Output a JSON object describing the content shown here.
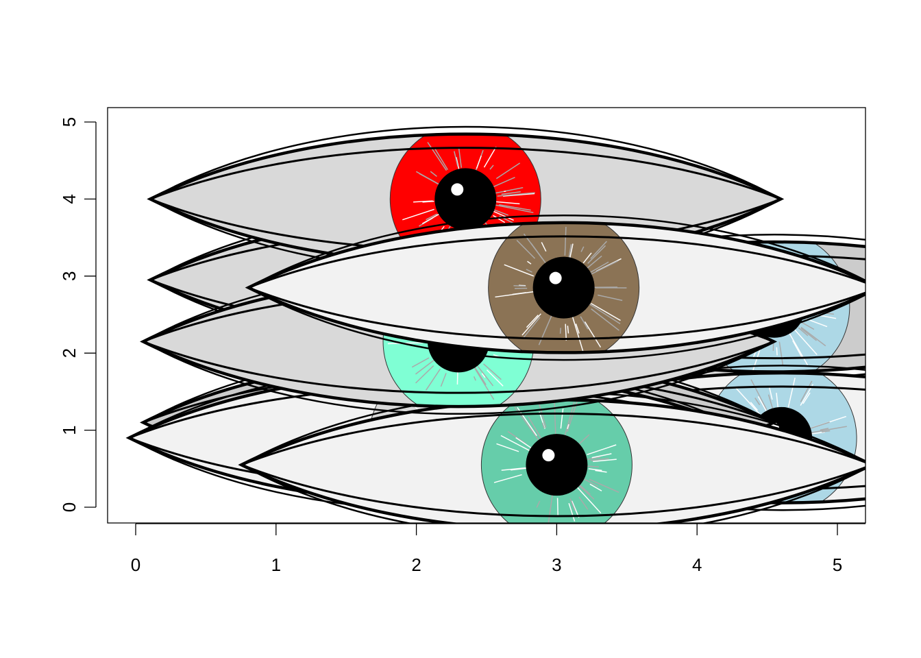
{
  "chart_data": {
    "type": "scatter",
    "title": "",
    "xlabel": "",
    "ylabel": "",
    "xlim": [
      -0.05,
      5.2
    ],
    "ylim": [
      -0.2,
      5.2
    ],
    "x_ticks": [
      "0",
      "1",
      "2",
      "3",
      "4",
      "5"
    ],
    "y_ticks": [
      "0",
      "1",
      "2",
      "3",
      "4",
      "5"
    ],
    "x_tick_values": [
      0,
      1,
      2,
      3,
      4,
      5
    ],
    "y_tick_values": [
      0,
      1,
      2,
      3,
      4,
      5
    ],
    "grid": false,
    "legend": "none",
    "marker": "eye glyphs",
    "sclera_colors": [
      "#d9d9d9",
      "#f2f2f2",
      "#cccccc"
    ],
    "pupil_color": "#000000",
    "eyes": [
      {
        "x": 2.35,
        "y": 2.95,
        "iris_color": "#add8e6",
        "sclera": "#d9d9d9"
      },
      {
        "x": 2.7,
        "y": 2.2,
        "iris_color": "#add8e6",
        "sclera": "#d9d9d9"
      },
      {
        "x": 4.55,
        "y": 2.6,
        "iris_color": "#add8e6",
        "sclera": "#cccccc"
      },
      {
        "x": 4.6,
        "y": 0.9,
        "iris_color": "#add8e6",
        "sclera": "#f2f2f2"
      },
      {
        "x": 2.3,
        "y": 1.1,
        "iris_color": "#d9d9d9",
        "sclera": "#cccccc"
      },
      {
        "x": 2.2,
        "y": 0.9,
        "iris_color": "#d9d9d9",
        "sclera": "#f2f2f2"
      },
      {
        "x": 3.0,
        "y": 0.55,
        "iris_color": "#66cdaa",
        "sclera": "#f2f2f2"
      },
      {
        "x": 2.35,
        "y": 4.0,
        "iris_color": "#ff0000",
        "sclera": "#d9d9d9"
      },
      {
        "x": 2.3,
        "y": 2.15,
        "iris_color": "#7fffd4",
        "sclera": "#d9d9d9"
      },
      {
        "x": 3.05,
        "y": 2.85,
        "iris_color": "#8b7355",
        "sclera": "#f2f2f2"
      }
    ]
  }
}
